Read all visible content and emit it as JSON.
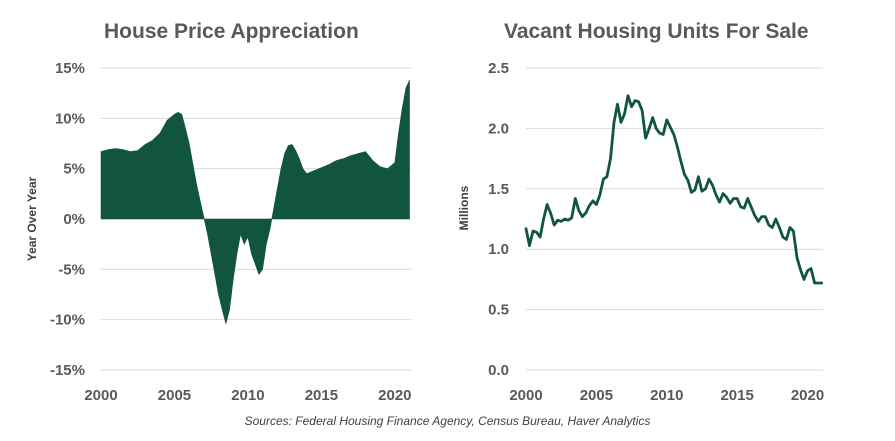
{
  "colors": {
    "series": "#12553f",
    "grid": "#d9d9d9",
    "text": "#595959"
  },
  "source": "Sources: Federal Housing Finance Agency, Census Bureau, Haver Analytics",
  "chart_data": [
    {
      "type": "area",
      "title": "House Price Appreciation",
      "xlabel": "",
      "ylabel": "Year Over Year",
      "xlim": [
        2000,
        2021.1
      ],
      "ylim": [
        -15,
        15
      ],
      "x_ticks": [
        2000,
        2005,
        2010,
        2015,
        2020
      ],
      "x_tick_labels": [
        "2000",
        "2005",
        "2010",
        "2015",
        "2020"
      ],
      "y_ticks": [
        15,
        10,
        5,
        0,
        -5,
        -10,
        -15
      ],
      "y_tick_labels": [
        "15%",
        "10%",
        "5%",
        "0%",
        "-5%",
        "-10%",
        "-15%"
      ],
      "grid": true,
      "x": [
        2000.0,
        2000.5,
        2001.0,
        2001.5,
        2002.0,
        2002.5,
        2003.0,
        2003.5,
        2004.0,
        2004.5,
        2005.0,
        2005.25,
        2005.5,
        2005.75,
        2006.0,
        2006.25,
        2006.5,
        2006.75,
        2007.0,
        2007.25,
        2007.5,
        2007.75,
        2008.0,
        2008.25,
        2008.5,
        2008.75,
        2009.0,
        2009.25,
        2009.5,
        2009.75,
        2010.0,
        2010.25,
        2010.5,
        2010.75,
        2011.0,
        2011.25,
        2011.5,
        2011.75,
        2012.0,
        2012.25,
        2012.5,
        2012.75,
        2013.0,
        2013.25,
        2013.5,
        2013.75,
        2014.0,
        2014.5,
        2015.0,
        2015.5,
        2016.0,
        2016.5,
        2017.0,
        2017.5,
        2018.0,
        2018.5,
        2019.0,
        2019.5,
        2020.0,
        2020.25,
        2020.5,
        2020.75,
        2021.0
      ],
      "values": [
        6.7,
        6.9,
        7.0,
        6.9,
        6.7,
        6.8,
        7.4,
        7.8,
        8.5,
        9.8,
        10.4,
        10.6,
        10.4,
        9.0,
        7.5,
        5.5,
        3.5,
        1.8,
        0.2,
        -1.5,
        -3.5,
        -5.5,
        -7.5,
        -9.0,
        -10.4,
        -9.0,
        -6.0,
        -3.5,
        -1.5,
        -2.5,
        -1.8,
        -3.5,
        -4.5,
        -5.5,
        -5.0,
        -2.5,
        -1.0,
        1.0,
        3.0,
        5.0,
        6.5,
        7.3,
        7.4,
        6.8,
        6.0,
        5.0,
        4.5,
        4.8,
        5.1,
        5.4,
        5.8,
        6.0,
        6.3,
        6.5,
        6.7,
        5.8,
        5.2,
        5.0,
        5.6,
        8.5,
        11.0,
        13.0,
        13.8
      ]
    },
    {
      "type": "line",
      "title": "Vacant Housing Units For Sale",
      "xlabel": "",
      "ylabel": "Millions",
      "xlim": [
        2000,
        2021.1
      ],
      "ylim": [
        0,
        2.5
      ],
      "x_ticks": [
        2000,
        2005,
        2010,
        2015,
        2020
      ],
      "x_tick_labels": [
        "2000",
        "2005",
        "2010",
        "2015",
        "2020"
      ],
      "y_ticks": [
        2.5,
        2.0,
        1.5,
        1.0,
        0.5,
        0.0
      ],
      "y_tick_labels": [
        "2.5",
        "2.0",
        "1.5",
        "1.0",
        "0.5",
        "0.0"
      ],
      "grid": true,
      "x": [
        2000.0,
        2000.25,
        2000.5,
        2000.75,
        2001.0,
        2001.25,
        2001.5,
        2001.75,
        2002.0,
        2002.25,
        2002.5,
        2002.75,
        2003.0,
        2003.25,
        2003.5,
        2003.75,
        2004.0,
        2004.25,
        2004.5,
        2004.75,
        2005.0,
        2005.25,
        2005.5,
        2005.75,
        2006.0,
        2006.25,
        2006.5,
        2006.75,
        2007.0,
        2007.25,
        2007.5,
        2007.75,
        2008.0,
        2008.25,
        2008.5,
        2008.75,
        2009.0,
        2009.25,
        2009.5,
        2009.75,
        2010.0,
        2010.25,
        2010.5,
        2010.75,
        2011.0,
        2011.25,
        2011.5,
        2011.75,
        2012.0,
        2012.25,
        2012.5,
        2012.75,
        2013.0,
        2013.25,
        2013.5,
        2013.75,
        2014.0,
        2014.25,
        2014.5,
        2014.75,
        2015.0,
        2015.25,
        2015.5,
        2015.75,
        2016.0,
        2016.25,
        2016.5,
        2016.75,
        2017.0,
        2017.25,
        2017.5,
        2017.75,
        2018.0,
        2018.25,
        2018.5,
        2018.75,
        2019.0,
        2019.25,
        2019.5,
        2019.75,
        2020.0,
        2020.25,
        2020.5,
        2020.75,
        2021.0
      ],
      "values": [
        1.17,
        1.03,
        1.15,
        1.14,
        1.1,
        1.25,
        1.37,
        1.3,
        1.2,
        1.24,
        1.23,
        1.25,
        1.24,
        1.26,
        1.42,
        1.32,
        1.27,
        1.3,
        1.36,
        1.4,
        1.37,
        1.45,
        1.58,
        1.6,
        1.75,
        2.05,
        2.2,
        2.05,
        2.12,
        2.27,
        2.18,
        2.23,
        2.22,
        2.15,
        1.92,
        2.0,
        2.09,
        2.0,
        1.96,
        1.95,
        2.07,
        2.01,
        1.95,
        1.85,
        1.73,
        1.62,
        1.57,
        1.47,
        1.49,
        1.6,
        1.48,
        1.5,
        1.58,
        1.53,
        1.45,
        1.39,
        1.46,
        1.43,
        1.38,
        1.42,
        1.42,
        1.35,
        1.34,
        1.42,
        1.35,
        1.28,
        1.23,
        1.27,
        1.27,
        1.2,
        1.18,
        1.25,
        1.18,
        1.1,
        1.08,
        1.18,
        1.15,
        0.93,
        0.83,
        0.75,
        0.82,
        0.84,
        0.72,
        0.72,
        0.72
      ]
    }
  ]
}
